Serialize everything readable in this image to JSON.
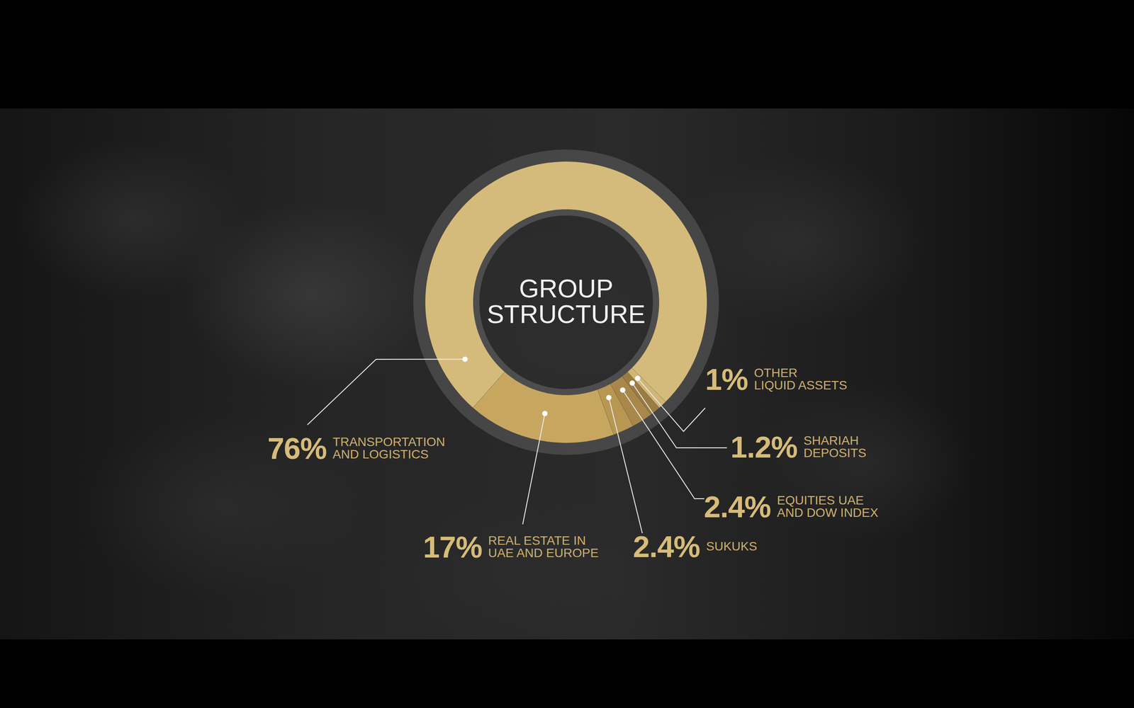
{
  "chart_data": {
    "type": "pie",
    "title": "GROUP STRUCTURE",
    "categories": [
      "TRANSPORTATION\nAND LOGISTICS",
      "REAL ESTATE IN\nUAE AND EUROPE",
      "SUKUKS",
      "EQUITIES UAE\nAND DOW INDEX",
      "SHARIAH\nDEPOSITS",
      "OTHER\nLIQUID ASSETS"
    ],
    "values": [
      76,
      17,
      2.4,
      2.4,
      1.2,
      1
    ],
    "value_labels": [
      "76%",
      "17%",
      "2.4%",
      "2.4%",
      "1.2%",
      "1%"
    ],
    "colors": [
      "#d5bb7b",
      "#c7a760",
      "#b89753",
      "#a8884a",
      "#9a7c42",
      "#d0b575"
    ],
    "data_labels": true
  }
}
